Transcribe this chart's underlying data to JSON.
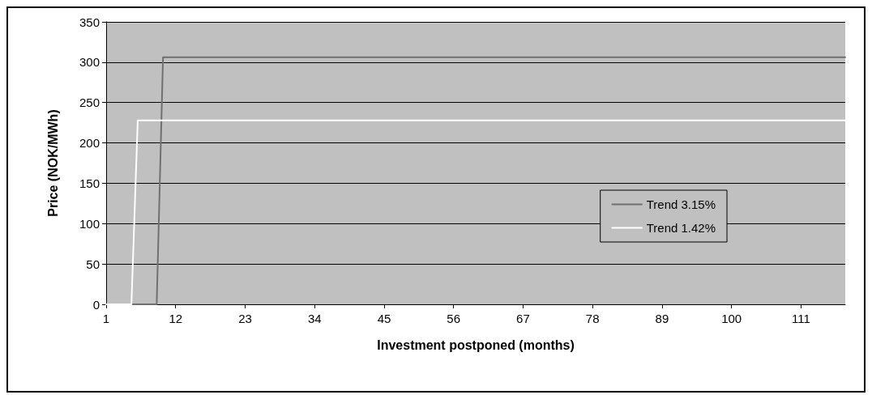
{
  "chart_data": {
    "type": "line",
    "xlabel": "Investment postponed (months)",
    "ylabel": "Price (NOK/MWh)",
    "categories": [
      "1",
      null,
      null,
      null,
      null,
      null,
      null,
      null,
      null,
      null,
      null,
      "12",
      null,
      null,
      null,
      null,
      null,
      null,
      null,
      null,
      null,
      null,
      "23",
      null,
      null,
      null,
      null,
      null,
      null,
      null,
      null,
      null,
      null,
      "34",
      null,
      null,
      null,
      null,
      null,
      null,
      null,
      null,
      null,
      null,
      "45",
      null,
      null,
      null,
      null,
      null,
      null,
      null,
      null,
      null,
      null,
      "56",
      null,
      null,
      null,
      null,
      null,
      null,
      null,
      null,
      null,
      null,
      "67",
      null,
      null,
      null,
      null,
      null,
      null,
      null,
      null,
      null,
      null,
      "78",
      null,
      null,
      null,
      null,
      null,
      null,
      null,
      null,
      null,
      null,
      "89",
      null,
      null,
      null,
      null,
      null,
      null,
      null,
      null,
      null,
      null,
      "100",
      null,
      null,
      null,
      null,
      null,
      null,
      null,
      null,
      null,
      null,
      "111",
      null,
      null,
      null,
      null,
      null,
      null,
      null
    ],
    "series": [
      {
        "name": "Trend 3.15%",
        "color": "#707070",
        "values": [
          0,
          0,
          0,
          0,
          0,
          0,
          0,
          0,
          0,
          306,
          306,
          306,
          306,
          306,
          306,
          306,
          306,
          306,
          306,
          306,
          306,
          306,
          306,
          306,
          306,
          306,
          306,
          306,
          306,
          306,
          306,
          306,
          306,
          306,
          306,
          306,
          306,
          306,
          306,
          306,
          306,
          306,
          306,
          306,
          306,
          306,
          306,
          306,
          306,
          306,
          306,
          306,
          306,
          306,
          306,
          306,
          306,
          306,
          306,
          306,
          306,
          306,
          306,
          306,
          306,
          306,
          306,
          306,
          306,
          306,
          306,
          306,
          306,
          306,
          306,
          306,
          306,
          306,
          306,
          306,
          306,
          306,
          306,
          306,
          306,
          306,
          306,
          306,
          306,
          306,
          306,
          306,
          306,
          306,
          306,
          306,
          306,
          306,
          306,
          306,
          306,
          306,
          306,
          306,
          306,
          306,
          306,
          306,
          306,
          306,
          306,
          306,
          306,
          306,
          306,
          306,
          306,
          306
        ]
      },
      {
        "name": "Trend 1.42%",
        "color": "#ffffff",
        "values": [
          0,
          0,
          0,
          0,
          0,
          228,
          228,
          228,
          228,
          228,
          228,
          228,
          228,
          228,
          228,
          228,
          228,
          228,
          228,
          228,
          228,
          228,
          228,
          228,
          228,
          228,
          228,
          228,
          228,
          228,
          228,
          228,
          228,
          228,
          228,
          228,
          228,
          228,
          228,
          228,
          228,
          228,
          228,
          228,
          228,
          228,
          228,
          228,
          228,
          228,
          228,
          228,
          228,
          228,
          228,
          228,
          228,
          228,
          228,
          228,
          228,
          228,
          228,
          228,
          228,
          228,
          228,
          228,
          228,
          228,
          228,
          228,
          228,
          228,
          228,
          228,
          228,
          228,
          228,
          228,
          228,
          228,
          228,
          228,
          228,
          228,
          228,
          228,
          228,
          228,
          228,
          228,
          228,
          228,
          228,
          228,
          228,
          228,
          228,
          228,
          228,
          228,
          228,
          228,
          228,
          228,
          228,
          228,
          228,
          228,
          228,
          228,
          228,
          228,
          228,
          228,
          228,
          228
        ]
      }
    ],
    "ylim": [
      0,
      350
    ],
    "yticks": [
      0,
      50,
      100,
      150,
      200,
      250,
      300,
      350
    ],
    "grid": "y",
    "legend": "right",
    "marker": "none",
    "line_style": "solid"
  }
}
